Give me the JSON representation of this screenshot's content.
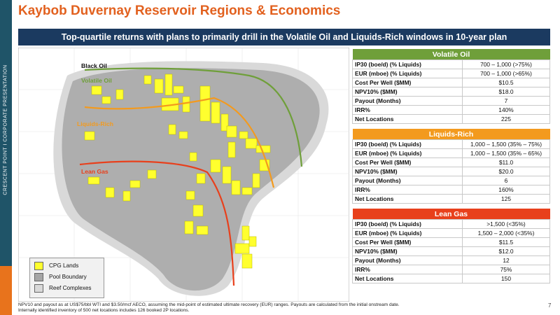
{
  "sidebar": {
    "text": "CRESCENT POINT   I   CORPORATE PRESENTATION",
    "colors": {
      "strip": "#1f5468",
      "accent": "#e8731c"
    }
  },
  "header": {
    "title": "Kaybob Duvernay Reservoir Regions & Economics",
    "subtitle": "Top-quartile returns with plans to primarily drill in the Volatile Oil and Liquids-Rich windows in 10-year plan"
  },
  "map": {
    "labels": {
      "black_oil": "Black Oil",
      "volatile_oil": "Volatile Oil",
      "liquids_rich": "Liquids-Rich",
      "lean_gas": "Lean Gas"
    },
    "legend": [
      {
        "label": "CPG Lands",
        "color": "#ffff2e"
      },
      {
        "label": "Pool Boundary",
        "color": "#a6a6a6"
      },
      {
        "label": "Reef Complexes",
        "color": "#d9d9d9"
      }
    ],
    "line_colors": {
      "black_oil": "#6f9f3a",
      "liquids_rich": "#f39a1e",
      "lean_gas": "#e8401c"
    }
  },
  "tables": [
    {
      "header": "Volatile Oil",
      "color": "#6f9f3a",
      "rows": [
        {
          "label": "IP30 (boe/d) (% Liquids)",
          "value": "700 – 1,000 (>75%)"
        },
        {
          "label": "EUR (mboe) (% Liquids)",
          "value": "700 – 1,000 (>65%)"
        },
        {
          "label": "Cost Per Well ($MM)",
          "value": "$10.5"
        },
        {
          "label": "NPV10% ($MM)",
          "value": "$18.0"
        },
        {
          "label": "Payout (Months)",
          "value": "7"
        },
        {
          "label": "IRR%",
          "value": "140%"
        },
        {
          "label": "Net Locations",
          "value": "225"
        }
      ]
    },
    {
      "header": "Liquids-Rich",
      "color": "#f39a1e",
      "rows": [
        {
          "label": "IP30 (boe/d) (% Liquids)",
          "value": "1,000 – 1,500 (35% – 75%)"
        },
        {
          "label": "EUR (mboe) (% Liquids)",
          "value": "1,000 – 1,500 (35% – 65%)"
        },
        {
          "label": "Cost Per Well ($MM)",
          "value": "$11.0"
        },
        {
          "label": "NPV10% ($MM)",
          "value": "$20.0"
        },
        {
          "label": "Payout (Months)",
          "value": "6"
        },
        {
          "label": "IRR%",
          "value": "160%"
        },
        {
          "label": "Net Locations",
          "value": "125"
        }
      ]
    },
    {
      "header": "Lean Gas",
      "color": "#e8401c",
      "rows": [
        {
          "label": "IP30 (boe/d) (% Liquids)",
          "value": ">1,500 (<35%)"
        },
        {
          "label": "EUR (mboe) (% Liquids)",
          "value": "1,500 – 2,000 (<35%)"
        },
        {
          "label": "Cost Per Well ($MM)",
          "value": "$11.5"
        },
        {
          "label": "NPV10% ($MM)",
          "value": "$12.0"
        },
        {
          "label": "Payout (Months)",
          "value": "12"
        },
        {
          "label": "IRR%",
          "value": "75%"
        },
        {
          "label": "Net Locations",
          "value": "150"
        }
      ]
    }
  ],
  "footnote": {
    "line1": "NPV10 and payout as at US$75/bbl WTI and $3.50/mcf AECO, assuming the mid-point of estimated ultimate recovery (EUR) ranges. Payouts are calculated from the initial onstream date.",
    "line2": "Internally identified inventory of 500 net locations includes 126 booked 2P locations."
  },
  "page_number": "7"
}
